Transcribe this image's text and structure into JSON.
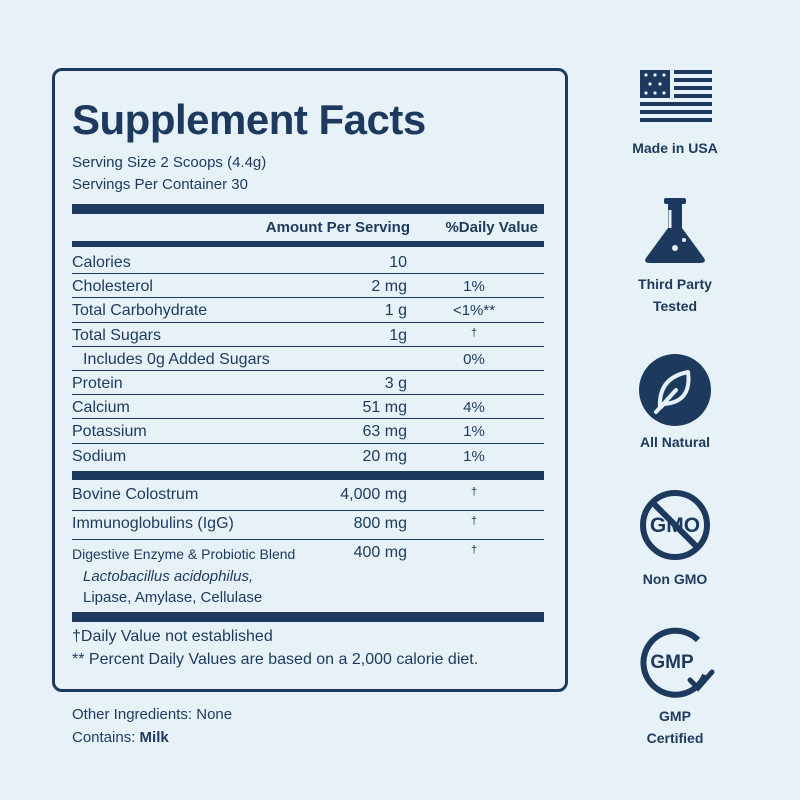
{
  "label": {
    "title": "Supplement Facts",
    "serving_size": "Serving Size 2 Scoops (4.4g)",
    "servings_per_container": "Servings Per Container 30",
    "header": {
      "amount": "Amount Per Serving",
      "dv": "%Daily Value"
    },
    "nutrients": [
      {
        "name": "Calories",
        "amount": "10"
      },
      {
        "name": "Cholesterol",
        "amount": "2 mg",
        "dv": "1%"
      },
      {
        "name": "Total Carbohydrate",
        "amount": "1 g",
        "dv": "<1%**"
      },
      {
        "name": "Total Sugars",
        "amount": "1g",
        "dv": "†"
      },
      {
        "name": "Includes 0g Added Sugars",
        "dv": "0%",
        "indent": true
      },
      {
        "name": "Protein",
        "amount": "3 g"
      },
      {
        "name": "Calcium",
        "amount": "51 mg",
        "dv": "4%"
      },
      {
        "name": "Potassium",
        "amount": "63 mg",
        "dv": "1%"
      },
      {
        "name": "Sodium",
        "amount": "20 mg",
        "dv": "1%"
      }
    ],
    "ingredients": [
      {
        "name": "Bovine Colostrum",
        "amount": "4,000 mg",
        "dv": "†"
      },
      {
        "name": "Immunoglobulins (IgG)",
        "amount": "800 mg",
        "dv": "†"
      },
      {
        "name": "Digestive Enzyme & Probiotic Blend",
        "amount": "400 mg",
        "dv": "†",
        "components": [
          {
            "text": "Lactobacillus acidophilus,",
            "italic": true
          },
          {
            "text": "Lipase, Amylase, Cellulase"
          }
        ]
      }
    ],
    "footnotes": [
      "†Daily Value not established",
      "** Percent Daily Values are based on a 2,000 calorie diet."
    ]
  },
  "other_ingredients": "Other Ingredients: None",
  "contains": {
    "label": "Contains:",
    "value": "Milk"
  },
  "badges": [
    {
      "icon": "flag",
      "label": [
        "Made in USA"
      ]
    },
    {
      "icon": "flask",
      "label": [
        "Third Party",
        "Tested"
      ]
    },
    {
      "icon": "leaf",
      "label": [
        "All Natural"
      ]
    },
    {
      "icon": "gmo",
      "icon_text": "GMO",
      "label": [
        "Non GMO"
      ]
    },
    {
      "icon": "gmp",
      "icon_text": "GMP",
      "label": [
        "GMP",
        "Certified"
      ]
    }
  ]
}
